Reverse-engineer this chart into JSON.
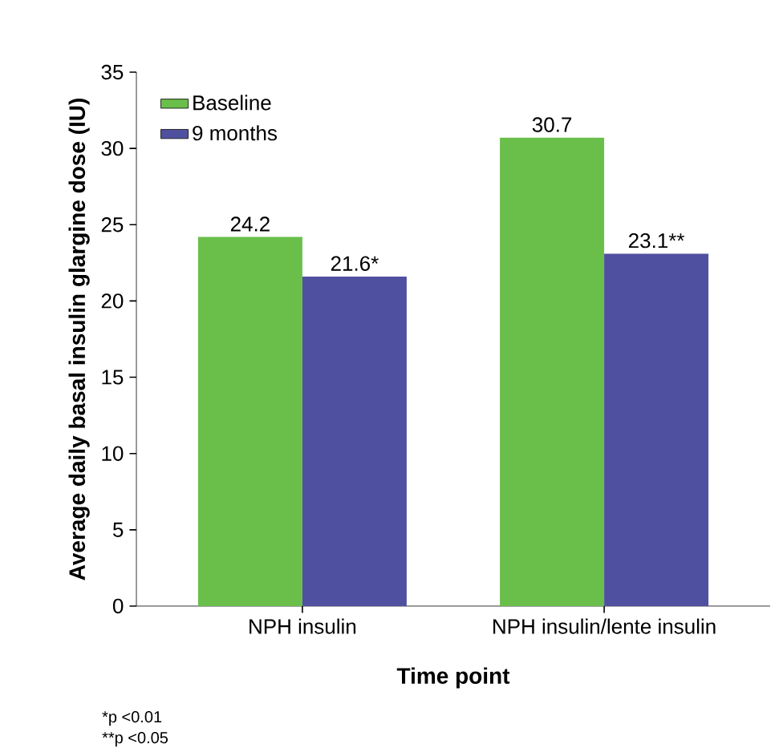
{
  "chart_data": {
    "type": "bar",
    "categories": [
      "NPH insulin",
      "NPH insulin/lente insulin"
    ],
    "series": [
      {
        "name": "Baseline",
        "color": "#6abf4b",
        "values": [
          24.2,
          30.7
        ],
        "value_labels": [
          "24.2",
          "30.7"
        ]
      },
      {
        "name": "9 months",
        "color": "#5050a0",
        "values": [
          21.6,
          23.1
        ],
        "value_labels": [
          "21.6*",
          "23.1**"
        ]
      }
    ],
    "ylim": [
      0,
      35
    ],
    "yticks": [
      0,
      5,
      10,
      15,
      20,
      25,
      30,
      35
    ],
    "xlabel": "Time point",
    "ylabel": "Average daily basal insulin glargine dose (IU)",
    "legend": "top left",
    "grid": false,
    "annotations": [
      "*p <0.01",
      "**p <0.05"
    ]
  }
}
